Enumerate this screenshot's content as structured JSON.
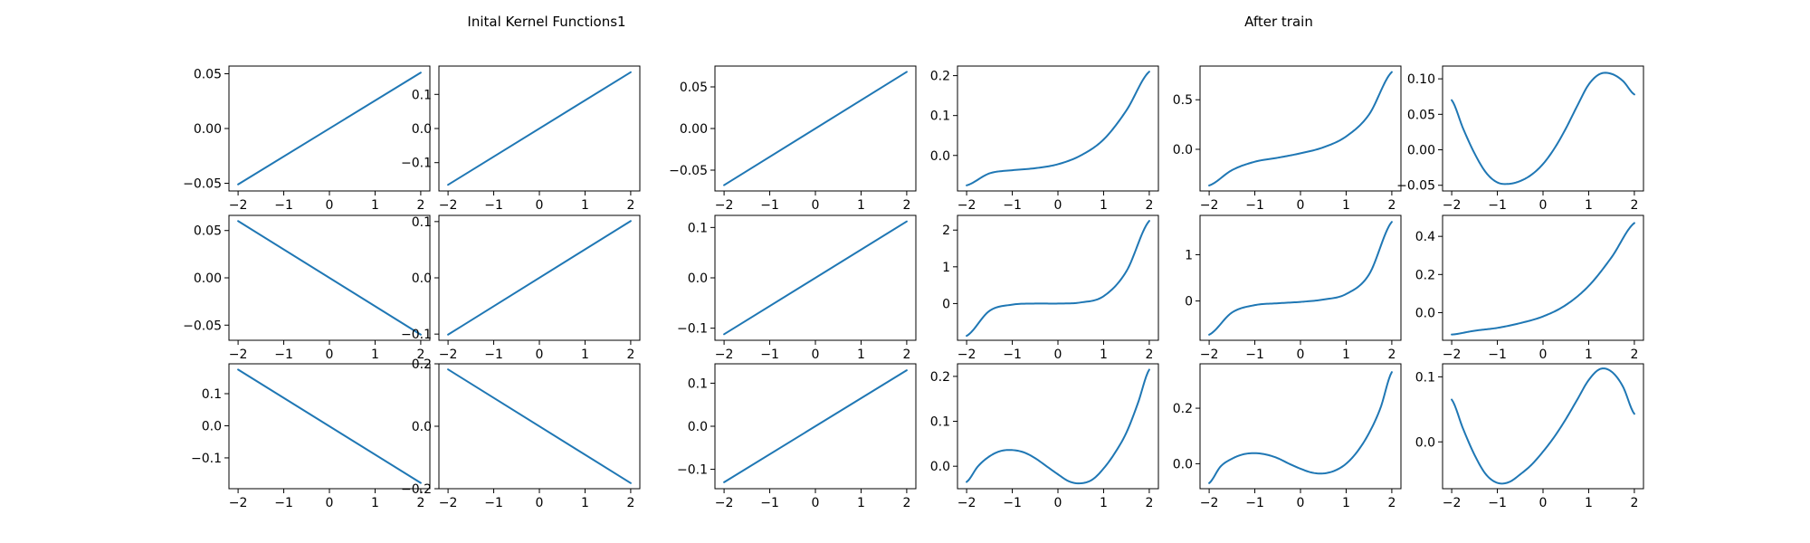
{
  "titles": {
    "left": "Inital Kernel Functions1",
    "right": "After train"
  },
  "series_color": "#1f77b4",
  "chart_data": [
    {
      "type": "line",
      "row": 0,
      "col": 0,
      "group": "initial",
      "x": [
        -2,
        2
      ],
      "y": [
        -0.051,
        0.051
      ],
      "xlim": [
        -2.2,
        2.2
      ],
      "ylim": [
        -0.057,
        0.057
      ],
      "xticks": [
        -2,
        -1,
        0,
        1,
        2
      ],
      "xtick_labels": [
        "−2",
        "−1",
        "0",
        "1",
        "2"
      ],
      "yticks": [
        -0.05,
        0.0,
        0.05
      ],
      "ytick_labels": [
        "−0.05",
        "0.00",
        "0.05"
      ]
    },
    {
      "type": "line",
      "row": 0,
      "col": 1,
      "group": "initial",
      "x": [
        -2,
        2
      ],
      "y": [
        -0.165,
        0.165
      ],
      "xlim": [
        -2.2,
        2.2
      ],
      "ylim": [
        -0.183,
        0.183
      ],
      "xticks": [
        -2,
        -1,
        0,
        1,
        2
      ],
      "xtick_labels": [
        "−2",
        "−1",
        "0",
        "1",
        "2"
      ],
      "yticks": [
        -0.1,
        0.0,
        0.1
      ],
      "ytick_labels": [
        "−0.1",
        "0.0",
        "0.1"
      ]
    },
    {
      "type": "line",
      "row": 0,
      "col": 2,
      "group": "initial",
      "x": [
        -2,
        2
      ],
      "y": [
        -0.068,
        0.068
      ],
      "xlim": [
        -2.2,
        2.2
      ],
      "ylim": [
        -0.075,
        0.075
      ],
      "xticks": [
        -2,
        -1,
        0,
        1,
        2
      ],
      "xtick_labels": [
        "−2",
        "−1",
        "0",
        "1",
        "2"
      ],
      "yticks": [
        -0.05,
        0.0,
        0.05
      ],
      "ytick_labels": [
        "−0.05",
        "0.00",
        "0.05"
      ]
    },
    {
      "type": "line",
      "row": 0,
      "col": 3,
      "group": "after_train",
      "x": [
        -2,
        -1.5,
        -1,
        -0.5,
        0,
        0.5,
        1,
        1.5,
        2
      ],
      "y": [
        -0.075,
        -0.045,
        -0.037,
        -0.032,
        -0.022,
        0.0,
        0.04,
        0.113,
        0.21
      ],
      "xlim": [
        -2.2,
        2.2
      ],
      "ylim": [
        -0.089,
        0.224
      ],
      "xticks": [
        -2,
        -1,
        0,
        1,
        2
      ],
      "xtick_labels": [
        "−2",
        "−1",
        "0",
        "1",
        "2"
      ],
      "yticks": [
        0.0,
        0.1,
        0.2
      ],
      "ytick_labels": [
        "0.0",
        "0.1",
        "0.2"
      ]
    },
    {
      "type": "line",
      "row": 0,
      "col": 4,
      "group": "after_train",
      "x": [
        -2,
        -1.5,
        -1,
        -0.5,
        0,
        0.5,
        1,
        1.5,
        2
      ],
      "y": [
        -0.365,
        -0.21,
        -0.125,
        -0.085,
        -0.04,
        0.02,
        0.13,
        0.35,
        0.78
      ],
      "xlim": [
        -2.2,
        2.2
      ],
      "ylim": [
        -0.42,
        0.84
      ],
      "xticks": [
        -2,
        -1,
        0,
        1,
        2
      ],
      "xtick_labels": [
        "−2",
        "−1",
        "0",
        "1",
        "2"
      ],
      "yticks": [
        0.0,
        0.5
      ],
      "ytick_labels": [
        "0.0",
        "0.5"
      ]
    },
    {
      "type": "line",
      "row": 0,
      "col": 5,
      "group": "after_train",
      "x": [
        -2,
        -1.75,
        -1.5,
        -1.25,
        -1,
        -0.75,
        -0.5,
        -0.25,
        0,
        0.25,
        0.5,
        0.75,
        1,
        1.25,
        1.5,
        1.75,
        2
      ],
      "y": [
        0.07,
        0.03,
        -0.005,
        -0.032,
        -0.046,
        -0.048,
        -0.044,
        -0.035,
        -0.02,
        0.002,
        0.03,
        0.062,
        0.092,
        0.107,
        0.107,
        0.097,
        0.078
      ],
      "xlim": [
        -2.2,
        2.2
      ],
      "ylim": [
        -0.058,
        0.118
      ],
      "xticks": [
        -2,
        -1,
        0,
        1,
        2
      ],
      "xtick_labels": [
        "−2",
        "−1",
        "0",
        "1",
        "2"
      ],
      "yticks": [
        -0.05,
        0.0,
        0.05,
        0.1
      ],
      "ytick_labels": [
        "−0.05",
        "0.00",
        "0.05",
        "0.10"
      ]
    },
    {
      "type": "line",
      "row": 1,
      "col": 0,
      "group": "initial",
      "x": [
        -2,
        2
      ],
      "y": [
        0.06,
        -0.06
      ],
      "xlim": [
        -2.2,
        2.2
      ],
      "ylim": [
        -0.066,
        0.066
      ],
      "xticks": [
        -2,
        -1,
        0,
        1,
        2
      ],
      "xtick_labels": [
        "−2",
        "−1",
        "0",
        "1",
        "2"
      ],
      "yticks": [
        -0.05,
        0.0,
        0.05
      ],
      "ytick_labels": [
        "−0.05",
        "0.00",
        "0.05"
      ]
    },
    {
      "type": "line",
      "row": 1,
      "col": 1,
      "group": "initial",
      "x": [
        -2,
        2
      ],
      "y": [
        -0.101,
        0.101
      ],
      "xlim": [
        -2.2,
        2.2
      ],
      "ylim": [
        -0.111,
        0.111
      ],
      "xticks": [
        -2,
        -1,
        0,
        1,
        2
      ],
      "xtick_labels": [
        "−2",
        "−1",
        "0",
        "1",
        "2"
      ],
      "yticks": [
        -0.1,
        0.0,
        0.1
      ],
      "ytick_labels": [
        "−0.1",
        "0.0",
        "0.1"
      ]
    },
    {
      "type": "line",
      "row": 1,
      "col": 2,
      "group": "initial",
      "x": [
        -2,
        2
      ],
      "y": [
        -0.112,
        0.112
      ],
      "xlim": [
        -2.2,
        2.2
      ],
      "ylim": [
        -0.124,
        0.124
      ],
      "xticks": [
        -2,
        -1,
        0,
        1,
        2
      ],
      "xtick_labels": [
        "−2",
        "−1",
        "0",
        "1",
        "2"
      ],
      "yticks": [
        -0.1,
        0.0,
        0.1
      ],
      "ytick_labels": [
        "−0.1",
        "0.0",
        "0.1"
      ]
    },
    {
      "type": "line",
      "row": 1,
      "col": 3,
      "group": "after_train",
      "x": [
        -2,
        -1.5,
        -1,
        -0.5,
        0,
        0.5,
        1,
        1.5,
        2
      ],
      "y": [
        -0.88,
        -0.2,
        -0.03,
        0.0,
        0.0,
        0.03,
        0.2,
        0.88,
        2.25
      ],
      "xlim": [
        -2.2,
        2.2
      ],
      "ylim": [
        -1.0,
        2.4
      ],
      "xticks": [
        -2,
        -1,
        0,
        1,
        2
      ],
      "xtick_labels": [
        "−2",
        "−1",
        "0",
        "1",
        "2"
      ],
      "yticks": [
        0,
        1,
        2
      ],
      "ytick_labels": [
        "0",
        "1",
        "2"
      ]
    },
    {
      "type": "line",
      "row": 1,
      "col": 4,
      "group": "after_train",
      "x": [
        -2,
        -1.5,
        -1,
        -0.5,
        0,
        0.5,
        1,
        1.5,
        2
      ],
      "y": [
        -0.73,
        -0.25,
        -0.09,
        -0.05,
        -0.02,
        0.03,
        0.15,
        0.57,
        1.71
      ],
      "xlim": [
        -2.2,
        2.2
      ],
      "ylim": [
        -0.85,
        1.85
      ],
      "xticks": [
        -2,
        -1,
        0,
        1,
        2
      ],
      "xtick_labels": [
        "−2",
        "−1",
        "0",
        "1",
        "2"
      ],
      "yticks": [
        0,
        1
      ],
      "ytick_labels": [
        "0",
        "1"
      ]
    },
    {
      "type": "line",
      "row": 1,
      "col": 5,
      "group": "after_train",
      "x": [
        -2,
        -1.5,
        -1,
        -0.5,
        0,
        0.5,
        1,
        1.5,
        2
      ],
      "y": [
        -0.115,
        -0.095,
        -0.08,
        -0.055,
        -0.02,
        0.04,
        0.14,
        0.29,
        0.47
      ],
      "xlim": [
        -2.2,
        2.2
      ],
      "ylim": [
        -0.145,
        0.51
      ],
      "xticks": [
        -2,
        -1,
        0,
        1,
        2
      ],
      "xtick_labels": [
        "−2",
        "−1",
        "0",
        "1",
        "2"
      ],
      "yticks": [
        0.0,
        0.2,
        0.4
      ],
      "ytick_labels": [
        "0.0",
        "0.2",
        "0.4"
      ]
    },
    {
      "type": "line",
      "row": 2,
      "col": 0,
      "group": "initial",
      "x": [
        -2,
        2
      ],
      "y": [
        0.175,
        -0.178
      ],
      "xlim": [
        -2.2,
        2.2
      ],
      "ylim": [
        -0.196,
        0.193
      ],
      "xticks": [
        -2,
        -1,
        0,
        1,
        2
      ],
      "xtick_labels": [
        "−2",
        "−1",
        "0",
        "1",
        "2"
      ],
      "yticks": [
        -0.1,
        0.0,
        0.1
      ],
      "ytick_labels": [
        "−0.1",
        "0.0",
        "0.1"
      ]
    },
    {
      "type": "line",
      "row": 2,
      "col": 1,
      "group": "initial",
      "x": [
        -2,
        2
      ],
      "y": [
        0.182,
        -0.182
      ],
      "xlim": [
        -2.2,
        2.2
      ],
      "ylim": [
        -0.2,
        0.2
      ],
      "xticks": [
        -2,
        -1,
        0,
        1,
        2
      ],
      "xtick_labels": [
        "−2",
        "−1",
        "0",
        "1",
        "2"
      ],
      "yticks": [
        -0.2,
        0.0,
        0.2
      ],
      "ytick_labels": [
        "−0.2",
        "0.0",
        "0.2"
      ]
    },
    {
      "type": "line",
      "row": 2,
      "col": 2,
      "group": "initial",
      "x": [
        -2,
        2
      ],
      "y": [
        -0.13,
        0.13
      ],
      "xlim": [
        -2.2,
        2.2
      ],
      "ylim": [
        -0.145,
        0.145
      ],
      "xticks": [
        -2,
        -1,
        0,
        1,
        2
      ],
      "xtick_labels": [
        "−2",
        "−1",
        "0",
        "1",
        "2"
      ],
      "yticks": [
        -0.1,
        0.0,
        0.1
      ],
      "ytick_labels": [
        "−0.1",
        "0.0",
        "0.1"
      ]
    },
    {
      "type": "line",
      "row": 2,
      "col": 3,
      "group": "after_train",
      "x": [
        -2,
        -1.75,
        -1.5,
        -1.25,
        -1,
        -0.75,
        -0.5,
        -0.25,
        0,
        0.25,
        0.5,
        0.75,
        1,
        1.25,
        1.5,
        1.75,
        2
      ],
      "y": [
        -0.035,
        0.0,
        0.022,
        0.034,
        0.036,
        0.031,
        0.018,
        0.0,
        -0.018,
        -0.034,
        -0.038,
        -0.03,
        -0.005,
        0.03,
        0.075,
        0.14,
        0.215
      ],
      "xlim": [
        -2.2,
        2.2
      ],
      "ylim": [
        -0.05,
        0.228
      ],
      "xticks": [
        -2,
        -1,
        0,
        1,
        2
      ],
      "xtick_labels": [
        "−2",
        "−1",
        "0",
        "1",
        "2"
      ],
      "yticks": [
        0.0,
        0.1,
        0.2
      ],
      "ytick_labels": [
        "0.0",
        "0.1",
        "0.2"
      ]
    },
    {
      "type": "line",
      "row": 2,
      "col": 4,
      "group": "after_train",
      "x": [
        -2,
        -1.75,
        -1.5,
        -1.25,
        -1,
        -0.75,
        -0.5,
        -0.25,
        0,
        0.25,
        0.5,
        0.75,
        1,
        1.25,
        1.5,
        1.75,
        2
      ],
      "y": [
        -0.07,
        -0.01,
        0.018,
        0.034,
        0.038,
        0.033,
        0.02,
        0.0,
        -0.018,
        -0.032,
        -0.035,
        -0.025,
        0.0,
        0.045,
        0.11,
        0.2,
        0.33
      ],
      "xlim": [
        -2.2,
        2.2
      ],
      "ylim": [
        -0.09,
        0.36
      ],
      "xticks": [
        -2,
        -1,
        0,
        1,
        2
      ],
      "xtick_labels": [
        "−2",
        "−1",
        "0",
        "1",
        "2"
      ],
      "yticks": [
        0.0,
        0.2
      ],
      "ytick_labels": [
        "0.0",
        "0.2"
      ]
    },
    {
      "type": "line",
      "row": 2,
      "col": 5,
      "group": "after_train",
      "x": [
        -2,
        -1.75,
        -1.5,
        -1.25,
        -1,
        -0.75,
        -0.5,
        -0.25,
        0,
        0.25,
        0.5,
        0.75,
        1,
        1.25,
        1.5,
        1.75,
        2
      ],
      "y": [
        0.065,
        0.02,
        -0.02,
        -0.05,
        -0.063,
        -0.062,
        -0.05,
        -0.035,
        -0.015,
        0.008,
        0.035,
        0.065,
        0.095,
        0.112,
        0.108,
        0.085,
        0.043
      ],
      "xlim": [
        -2.2,
        2.2
      ],
      "ylim": [
        -0.072,
        0.12
      ],
      "xticks": [
        -2,
        -1,
        0,
        1,
        2
      ],
      "xtick_labels": [
        "−2",
        "−1",
        "0",
        "1",
        "2"
      ],
      "yticks": [
        0.0,
        0.1
      ],
      "ytick_labels": [
        "0.0",
        "0.1"
      ]
    }
  ]
}
